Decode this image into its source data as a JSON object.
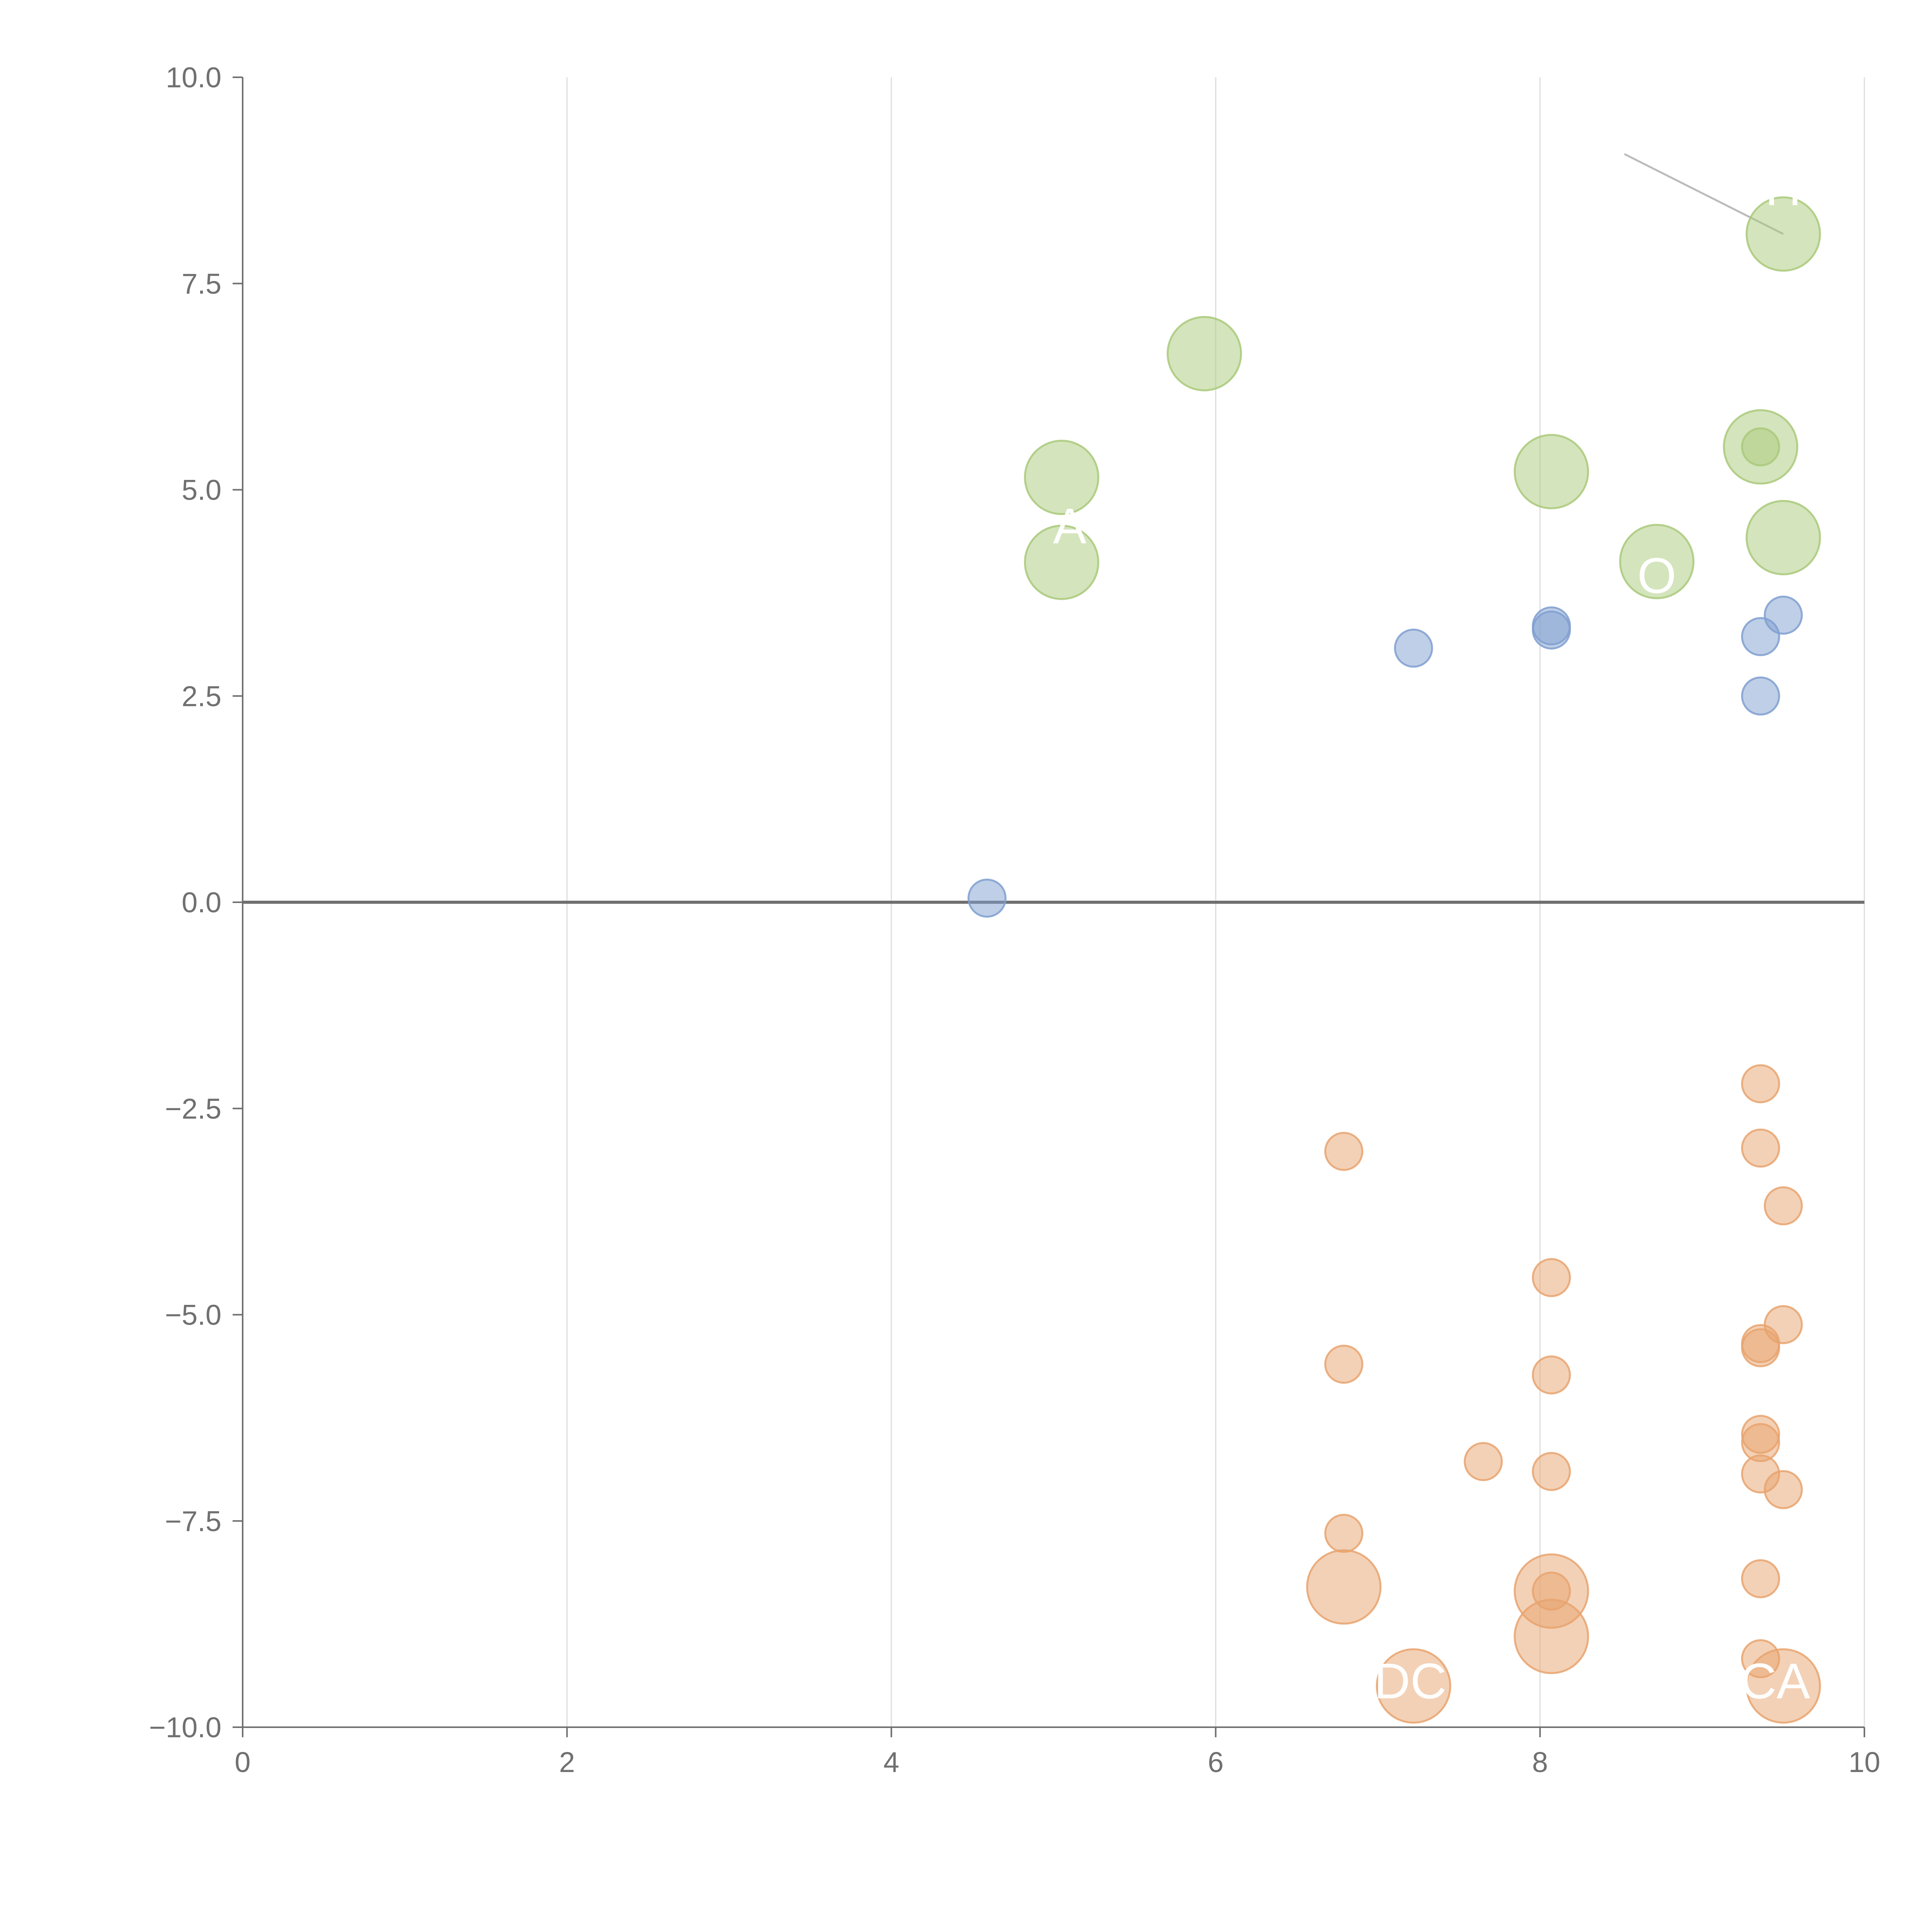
{
  "chart_data": {
    "type": "scatter",
    "title": "",
    "xlabel": "",
    "ylabel": "",
    "xlim": [
      0,
      10
    ],
    "ylim": [
      -10,
      10
    ],
    "x_ticks": [
      0,
      2,
      4,
      6,
      8,
      10
    ],
    "x_tick_labels": [
      "0",
      "2",
      "4",
      "6",
      "8",
      "10"
    ],
    "y_ticks": [
      10,
      7.5,
      5,
      2.5,
      0,
      -2.5,
      -5,
      -7.5,
      -10
    ],
    "y_tick_labels": [
      "10.0",
      "7.5",
      "5.0",
      "2.5",
      "0.0",
      "−2.5",
      "−5.0",
      "−7.5",
      "−10.0"
    ],
    "grid": "vertical",
    "zero_line": true,
    "colors": {
      "green": "#a9c97a",
      "blue": "#7f9fd0",
      "orange": "#e8a36e",
      "axis": "#707070",
      "grid": "#dddddd",
      "leader": "#bbbbbb"
    },
    "series": [
      {
        "name": "green",
        "color": "#a9c97a",
        "points": [
          {
            "x": 9.5,
            "y": 8.1,
            "size": 3
          },
          {
            "x": 5.93,
            "y": 6.65,
            "size": 3
          },
          {
            "x": 5.05,
            "y": 5.15,
            "size": 3
          },
          {
            "x": 5.05,
            "y": 4.12,
            "size": 3
          },
          {
            "x": 8.07,
            "y": 5.22,
            "size": 3
          },
          {
            "x": 8.72,
            "y": 4.13,
            "size": 3
          },
          {
            "x": 9.36,
            "y": 5.52,
            "size": 3
          },
          {
            "x": 9.36,
            "y": 5.52,
            "size": 1
          },
          {
            "x": 9.5,
            "y": 4.42,
            "size": 3
          }
        ]
      },
      {
        "name": "blue",
        "color": "#7f9fd0",
        "points": [
          {
            "x": 4.59,
            "y": 0.05,
            "size": 1
          },
          {
            "x": 7.22,
            "y": 3.08,
            "size": 1
          },
          {
            "x": 8.07,
            "y": 3.35,
            "size": 1
          },
          {
            "x": 8.07,
            "y": 3.3,
            "size": 1
          },
          {
            "x": 9.36,
            "y": 3.22,
            "size": 1
          },
          {
            "x": 9.5,
            "y": 3.48,
            "size": 1
          },
          {
            "x": 9.36,
            "y": 2.5,
            "size": 1
          }
        ]
      },
      {
        "name": "orange",
        "color": "#e8a36e",
        "points": [
          {
            "x": 6.79,
            "y": -3.02,
            "size": 1
          },
          {
            "x": 6.79,
            "y": -5.6,
            "size": 1
          },
          {
            "x": 6.79,
            "y": -7.65,
            "size": 1
          },
          {
            "x": 6.79,
            "y": -8.3,
            "size": 3
          },
          {
            "x": 7.65,
            "y": -6.78,
            "size": 1
          },
          {
            "x": 7.22,
            "y": -9.5,
            "size": 3
          },
          {
            "x": 8.07,
            "y": -4.55,
            "size": 1
          },
          {
            "x": 8.07,
            "y": -5.73,
            "size": 1
          },
          {
            "x": 8.07,
            "y": -6.9,
            "size": 1
          },
          {
            "x": 8.07,
            "y": -8.35,
            "size": 3
          },
          {
            "x": 8.07,
            "y": -8.35,
            "size": 1
          },
          {
            "x": 8.07,
            "y": -8.9,
            "size": 3
          },
          {
            "x": 9.36,
            "y": -2.2,
            "size": 1
          },
          {
            "x": 9.36,
            "y": -2.98,
            "size": 1
          },
          {
            "x": 9.5,
            "y": -3.68,
            "size": 1
          },
          {
            "x": 9.5,
            "y": -5.12,
            "size": 1
          },
          {
            "x": 9.36,
            "y": -5.35,
            "size": 1
          },
          {
            "x": 9.36,
            "y": -5.4,
            "size": 1
          },
          {
            "x": 9.36,
            "y": -6.45,
            "size": 1
          },
          {
            "x": 9.36,
            "y": -6.55,
            "size": 1
          },
          {
            "x": 9.36,
            "y": -6.93,
            "size": 1
          },
          {
            "x": 9.5,
            "y": -7.12,
            "size": 1
          },
          {
            "x": 9.36,
            "y": -8.2,
            "size": 1
          },
          {
            "x": 9.36,
            "y": -9.17,
            "size": 1
          },
          {
            "x": 9.5,
            "y": -9.5,
            "size": 3
          }
        ]
      }
    ],
    "annotations": [
      {
        "text": "H",
        "x": 9.5,
        "y": 8.45,
        "leader_from": [
          8.52,
          9.07
        ],
        "leader_to": [
          9.5,
          8.1
        ]
      },
      {
        "text": "A",
        "x": 5.1,
        "y": 4.35
      },
      {
        "text": "O",
        "x": 8.72,
        "y": 3.75
      },
      {
        "text": "DC",
        "x": 7.2,
        "y": -9.65
      },
      {
        "text": "CA",
        "x": 9.45,
        "y": -9.65
      }
    ]
  }
}
